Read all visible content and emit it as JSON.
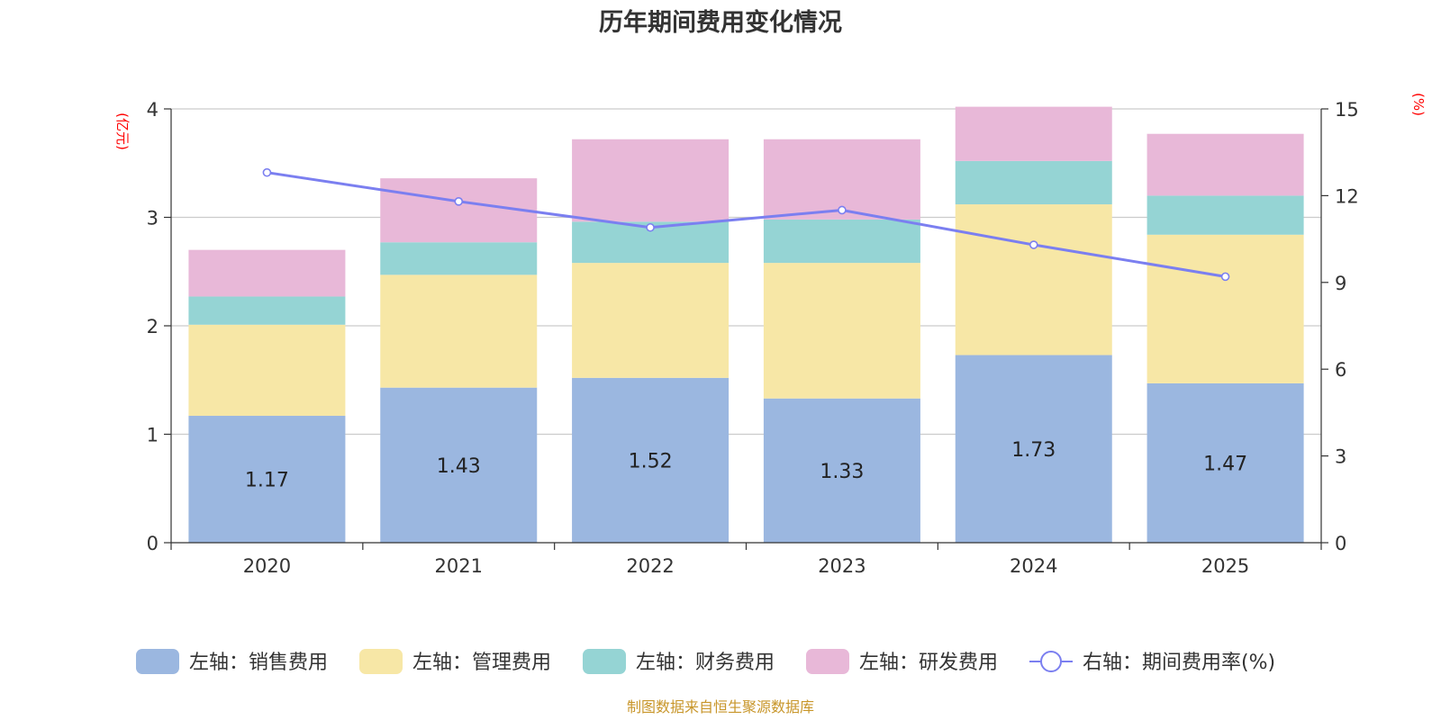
{
  "chart_data": {
    "type": "bar",
    "title": "历年期间费用变化情况",
    "categories": [
      "2020",
      "2021",
      "2022",
      "2023",
      "2024",
      "2025"
    ],
    "left_axis": {
      "unit": "(亿元)",
      "ylim": [
        0,
        4
      ],
      "ticks": [
        "0",
        "1",
        "2",
        "3",
        "4"
      ]
    },
    "right_axis": {
      "unit": "(%)",
      "ylim": [
        0,
        15
      ],
      "ticks": [
        "0",
        "3",
        "6",
        "9",
        "12",
        "15"
      ]
    },
    "series": [
      {
        "name": "左轴：销售费用",
        "axis": "left",
        "color": "#9bb7e0",
        "values": [
          1.17,
          1.43,
          1.52,
          1.33,
          1.73,
          1.47
        ],
        "labels": [
          "1.17",
          "1.43",
          "1.52",
          "1.33",
          "1.73",
          "1.47"
        ]
      },
      {
        "name": "左轴：管理费用",
        "axis": "left",
        "color": "#f7e7a6",
        "values": [
          0.84,
          1.04,
          1.06,
          1.25,
          1.39,
          1.37
        ]
      },
      {
        "name": "左轴：财务费用",
        "axis": "left",
        "color": "#95d4d4",
        "values": [
          0.26,
          0.3,
          0.38,
          0.4,
          0.4,
          0.36
        ]
      },
      {
        "name": "左轴：研发费用",
        "axis": "left",
        "color": "#e8b8d8",
        "values": [
          0.43,
          0.59,
          0.76,
          0.74,
          0.5,
          0.57
        ]
      },
      {
        "name": "右轴：期间费用率(%)",
        "axis": "right",
        "type": "line",
        "color": "#7b7ff0",
        "values": [
          12.8,
          11.8,
          10.9,
          11.5,
          10.3,
          9.2
        ]
      }
    ],
    "source": "制图数据来自恒生聚源数据库"
  }
}
